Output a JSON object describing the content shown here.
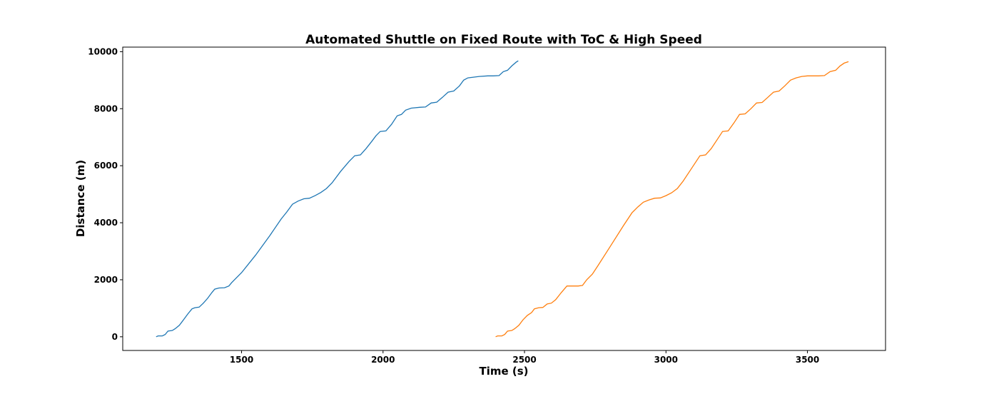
{
  "chart_data": {
    "type": "line",
    "title": "Automated Shuttle on Fixed Route with ToC & High Speed",
    "xlabel": "Time (s)",
    "ylabel": "Distance (m)",
    "xlim": [
      1080,
      3776
    ],
    "ylim": [
      -480,
      10160
    ],
    "xticks": [
      1500,
      2000,
      2500,
      3000,
      3500
    ],
    "xtick_labels": [
      "1500",
      "2000",
      "2500",
      "3000",
      "3500"
    ],
    "yticks": [
      0,
      2000,
      4000,
      6000,
      8000,
      10000
    ],
    "ytick_labels": [
      "0",
      "2000",
      "4000",
      "6000",
      "8000",
      "10000"
    ],
    "grid": false,
    "series": [
      {
        "color": "#1f77b4",
        "x": [
          1198,
          1205,
          1220,
          1230,
          1240,
          1255,
          1265,
          1280,
          1295,
          1310,
          1325,
          1335,
          1350,
          1365,
          1380,
          1395,
          1405,
          1420,
          1440,
          1455,
          1465,
          1480,
          1500,
          1550,
          1600,
          1640,
          1660,
          1680,
          1700,
          1720,
          1740,
          1760,
          1780,
          1800,
          1820,
          1850,
          1880,
          1900,
          1920,
          1940,
          1960,
          1975,
          1990,
          2010,
          2030,
          2050,
          2065,
          2080,
          2100,
          2130,
          2150,
          2170,
          2190,
          2210,
          2230,
          2250,
          2270,
          2285,
          2300,
          2340,
          2370,
          2390,
          2410,
          2425,
          2440,
          2455,
          2470,
          2478
        ],
        "y": [
          0,
          30,
          30,
          80,
          200,
          220,
          280,
          400,
          600,
          800,
          980,
          1020,
          1040,
          1180,
          1350,
          1550,
          1670,
          1710,
          1720,
          1780,
          1900,
          2050,
          2250,
          2870,
          3550,
          4130,
          4380,
          4650,
          4760,
          4840,
          4860,
          4950,
          5060,
          5200,
          5400,
          5800,
          6150,
          6350,
          6380,
          6600,
          6850,
          7050,
          7200,
          7220,
          7450,
          7750,
          7800,
          7950,
          8020,
          8050,
          8060,
          8200,
          8230,
          8400,
          8580,
          8620,
          8800,
          9000,
          9080,
          9130,
          9150,
          9150,
          9160,
          9300,
          9350,
          9500,
          9630,
          9680
        ]
      },
      {
        "color": "#ff7f0e",
        "x": [
          2398,
          2405,
          2420,
          2430,
          2440,
          2455,
          2465,
          2480,
          2495,
          2510,
          2525,
          2535,
          2550,
          2565,
          2580,
          2595,
          2610,
          2630,
          2650,
          2670,
          2690,
          2705,
          2720,
          2740,
          2760,
          2800,
          2850,
          2880,
          2900,
          2920,
          2940,
          2960,
          2980,
          3000,
          3020,
          3040,
          3060,
          3090,
          3120,
          3140,
          3160,
          3180,
          3200,
          3220,
          3240,
          3260,
          3280,
          3300,
          3320,
          3340,
          3360,
          3380,
          3400,
          3420,
          3440,
          3460,
          3480,
          3500,
          3540,
          3560,
          3580,
          3600,
          3615,
          3630,
          3645
        ],
        "y": [
          0,
          30,
          30,
          80,
          200,
          220,
          280,
          400,
          600,
          750,
          850,
          980,
          1020,
          1030,
          1150,
          1180,
          1300,
          1550,
          1780,
          1780,
          1780,
          1800,
          2000,
          2200,
          2500,
          3120,
          3900,
          4350,
          4550,
          4720,
          4800,
          4860,
          4870,
          4950,
          5050,
          5200,
          5450,
          5900,
          6350,
          6380,
          6600,
          6900,
          7200,
          7220,
          7500,
          7800,
          7820,
          8000,
          8200,
          8220,
          8400,
          8580,
          8620,
          8800,
          9000,
          9080,
          9130,
          9150,
          9150,
          9160,
          9300,
          9350,
          9500,
          9600,
          9650
        ]
      }
    ]
  }
}
